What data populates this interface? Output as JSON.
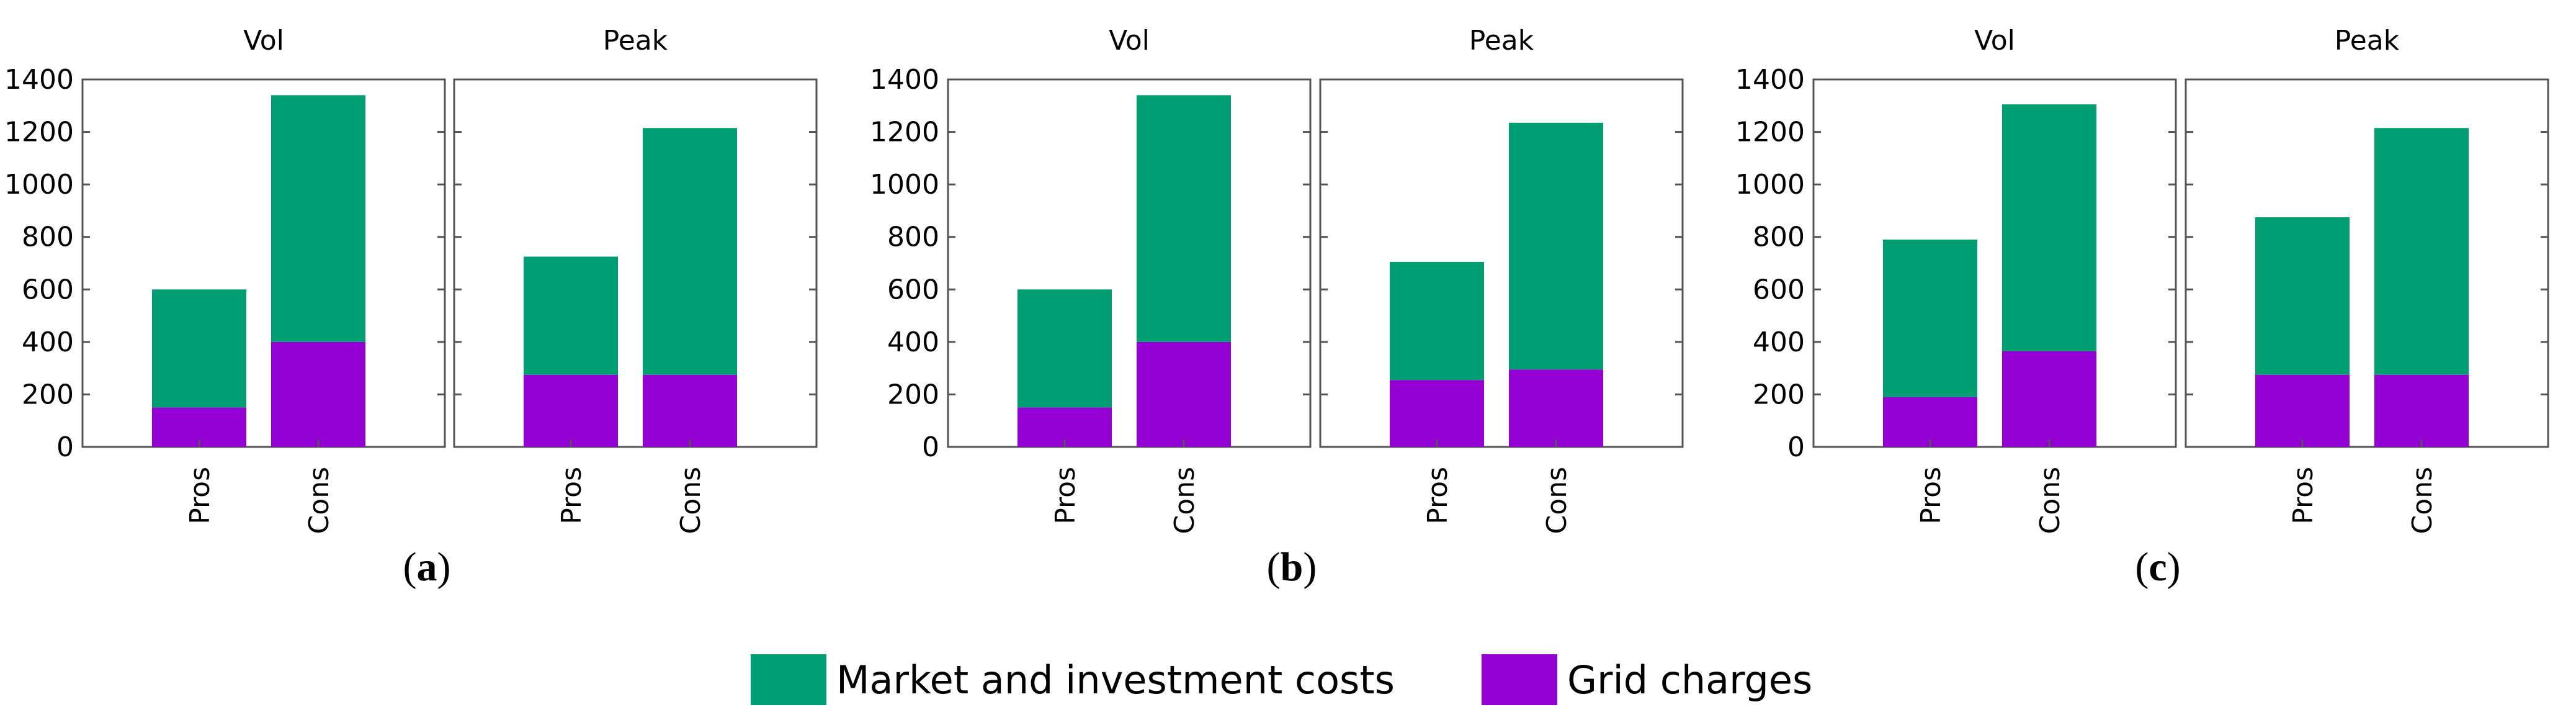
{
  "colors": {
    "market": "#009E73",
    "grid": "#9400D3",
    "axis": "#555555"
  },
  "legend": [
    {
      "key": "market",
      "label": "Market and investment costs"
    },
    {
      "key": "grid",
      "label": "Grid charges"
    }
  ],
  "subfigure_labels": [
    {
      "open": "(",
      "letter": "a",
      "close": ")"
    },
    {
      "open": "(",
      "letter": "b",
      "close": ")"
    },
    {
      "open": "(",
      "letter": "c",
      "close": ")"
    }
  ],
  "chart_data": [
    {
      "type": "bar",
      "stacked": true,
      "subfigure": "a",
      "title": "Vol",
      "categories": [
        "Pros",
        "Cons"
      ],
      "ylim": [
        0,
        1400
      ],
      "yticks": [
        "0",
        "200",
        "400",
        "600",
        "800",
        "1000",
        "1200",
        "1400"
      ],
      "series": [
        {
          "name": "Grid charges",
          "values": [
            150,
            400
          ]
        },
        {
          "name": "Market and investment costs",
          "values": [
            450,
            940
          ]
        }
      ]
    },
    {
      "type": "bar",
      "stacked": true,
      "subfigure": "a",
      "title": "Peak",
      "categories": [
        "Pros",
        "Cons"
      ],
      "ylim": [
        0,
        1400
      ],
      "series": [
        {
          "name": "Grid charges",
          "values": [
            275,
            275
          ]
        },
        {
          "name": "Market and investment costs",
          "values": [
            450,
            940
          ]
        }
      ]
    },
    {
      "type": "bar",
      "stacked": true,
      "subfigure": "b",
      "title": "Vol",
      "categories": [
        "Pros",
        "Cons"
      ],
      "ylim": [
        0,
        1400
      ],
      "yticks": [
        "0",
        "200",
        "400",
        "600",
        "800",
        "1000",
        "1200",
        "1400"
      ],
      "series": [
        {
          "name": "Grid charges",
          "values": [
            150,
            400
          ]
        },
        {
          "name": "Market and investment costs",
          "values": [
            450,
            940
          ]
        }
      ]
    },
    {
      "type": "bar",
      "stacked": true,
      "subfigure": "b",
      "title": "Peak",
      "categories": [
        "Pros",
        "Cons"
      ],
      "ylim": [
        0,
        1400
      ],
      "series": [
        {
          "name": "Grid charges",
          "values": [
            255,
            295
          ]
        },
        {
          "name": "Market and investment costs",
          "values": [
            450,
            940
          ]
        }
      ]
    },
    {
      "type": "bar",
      "stacked": true,
      "subfigure": "c",
      "title": "Vol",
      "categories": [
        "Pros",
        "Cons"
      ],
      "ylim": [
        0,
        1400
      ],
      "yticks": [
        "0",
        "200",
        "400",
        "600",
        "800",
        "1000",
        "1200",
        "1400"
      ],
      "series": [
        {
          "name": "Grid charges",
          "values": [
            190,
            365
          ]
        },
        {
          "name": "Market and investment costs",
          "values": [
            600,
            940
          ]
        }
      ]
    },
    {
      "type": "bar",
      "stacked": true,
      "subfigure": "c",
      "title": "Peak",
      "categories": [
        "Pros",
        "Cons"
      ],
      "ylim": [
        0,
        1400
      ],
      "series": [
        {
          "name": "Grid charges",
          "values": [
            275,
            275
          ]
        },
        {
          "name": "Market and investment costs",
          "values": [
            600,
            940
          ]
        }
      ]
    }
  ]
}
